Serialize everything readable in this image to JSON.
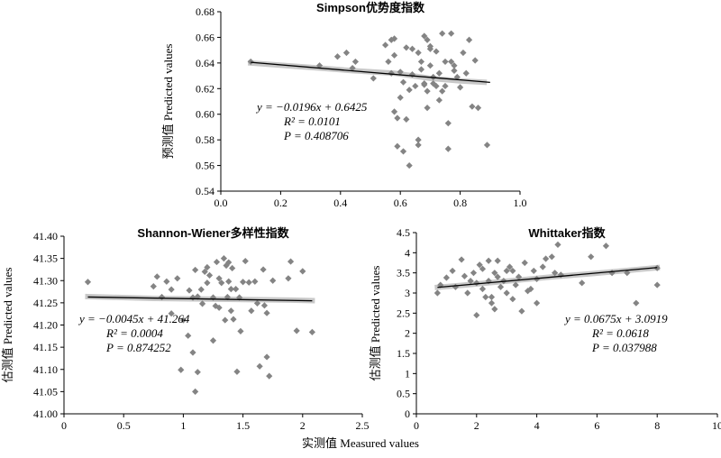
{
  "footer": {
    "xlabel": "实测值 Measured values"
  },
  "colors": {
    "point": "#848484",
    "fit_line": "#000000",
    "band": "#c8c8c8",
    "axis": "#000000"
  },
  "chart_data": [
    {
      "type": "scatter",
      "title": "Simpson优势度指数",
      "xlabel": "",
      "ylabel": "预测值 Predicted values",
      "xlim": [
        0,
        1.0
      ],
      "ylim": [
        0.54,
        0.68
      ],
      "xticks": [
        0,
        0.2,
        0.4,
        0.6,
        0.8,
        1.0
      ],
      "xtick_labels": [
        "0.0",
        "0.2",
        "0.4",
        "0.6",
        "0.8",
        "1.0"
      ],
      "yticks": [
        0.54,
        0.56,
        0.58,
        0.6,
        0.62,
        0.64,
        0.66,
        0.68
      ],
      "ytick_labels": [
        "0.54",
        "0.56",
        "0.58",
        "0.60",
        "0.62",
        "0.64",
        "0.66",
        "0.68"
      ],
      "annotation": {
        "eq": "y = −0.0196x + 0.6425",
        "r2": "R² = 0.0101",
        "p": "P = 0.408706"
      },
      "fit": {
        "slope": -0.0196,
        "intercept": 0.6425,
        "x": [
          0.1,
          0.9
        ]
      },
      "band": [
        [
          0.1,
          0.64
        ],
        [
          0.33,
          0.636
        ],
        [
          0.44,
          0.634
        ],
        [
          0.58,
          0.632
        ],
        [
          0.7,
          0.628
        ],
        [
          0.8,
          0.626
        ],
        [
          0.88,
          0.625
        ]
      ],
      "series": [
        {
          "values": [
            [
              0.1,
              0.641
            ],
            [
              0.33,
              0.638
            ],
            [
              0.39,
              0.645
            ],
            [
              0.42,
              0.648
            ],
            [
              0.44,
              0.636
            ],
            [
              0.45,
              0.641
            ],
            [
              0.51,
              0.628
            ],
            [
              0.55,
              0.654
            ],
            [
              0.56,
              0.641
            ],
            [
              0.57,
              0.658
            ],
            [
              0.57,
              0.632
            ],
            [
              0.58,
              0.646
            ],
            [
              0.58,
              0.659
            ],
            [
              0.58,
              0.602
            ],
            [
              0.59,
              0.597
            ],
            [
              0.59,
              0.575
            ],
            [
              0.6,
              0.633
            ],
            [
              0.6,
              0.613
            ],
            [
              0.61,
              0.571
            ],
            [
              0.61,
              0.625
            ],
            [
              0.62,
              0.652
            ],
            [
              0.62,
              0.596
            ],
            [
              0.63,
              0.619
            ],
            [
              0.63,
              0.56
            ],
            [
              0.64,
              0.651
            ],
            [
              0.64,
              0.631
            ],
            [
              0.65,
              0.622
            ],
            [
              0.66,
              0.58
            ],
            [
              0.66,
              0.648
            ],
            [
              0.66,
              0.576
            ],
            [
              0.67,
              0.641
            ],
            [
              0.67,
              0.635
            ],
            [
              0.68,
              0.624
            ],
            [
              0.68,
              0.661
            ],
            [
              0.68,
              0.623
            ],
            [
              0.69,
              0.658
            ],
            [
              0.69,
              0.618
            ],
            [
              0.69,
              0.605
            ],
            [
              0.7,
              0.651
            ],
            [
              0.7,
              0.638
            ],
            [
              0.7,
              0.653
            ],
            [
              0.71,
              0.629
            ],
            [
              0.71,
              0.624
            ],
            [
              0.72,
              0.649
            ],
            [
              0.72,
              0.622
            ],
            [
              0.73,
              0.611
            ],
            [
              0.73,
              0.632
            ],
            [
              0.74,
              0.663
            ],
            [
              0.74,
              0.618
            ],
            [
              0.75,
              0.641
            ],
            [
              0.75,
              0.622
            ],
            [
              0.76,
              0.593
            ],
            [
              0.76,
              0.573
            ],
            [
              0.77,
              0.641
            ],
            [
              0.77,
              0.663
            ],
            [
              0.78,
              0.634
            ],
            [
              0.78,
              0.638
            ],
            [
              0.79,
              0.629
            ],
            [
              0.8,
              0.621
            ],
            [
              0.81,
              0.648
            ],
            [
              0.82,
              0.632
            ],
            [
              0.83,
              0.658
            ],
            [
              0.84,
              0.606
            ],
            [
              0.85,
              0.642
            ],
            [
              0.86,
              0.605
            ],
            [
              0.89,
              0.576
            ]
          ]
        }
      ]
    },
    {
      "type": "scatter",
      "title": "Shannon-Wiener多样性指数",
      "xlabel": "",
      "ylabel": "估测值 Predicted values",
      "xlim": [
        0,
        2.5
      ],
      "ylim": [
        41.0,
        41.4
      ],
      "xticks": [
        0,
        0.5,
        1.0,
        1.5,
        2.0,
        2.5
      ],
      "xtick_labels": [
        "0",
        "0.5",
        "1",
        "1.5",
        "2",
        "2.5"
      ],
      "yticks": [
        41.0,
        41.05,
        41.1,
        41.15,
        41.2,
        41.25,
        41.3,
        41.35,
        41.4
      ],
      "ytick_labels": [
        "41.00",
        "41.05",
        "41.10",
        "41.15",
        "41.20",
        "41.25",
        "41.30",
        "41.35",
        "41.40"
      ],
      "annotation": {
        "eq": "y = −0.0045x + 41.264",
        "r2": "R² = 0.0004",
        "p": "P = 0.874252"
      },
      "fit": {
        "slope": -0.0045,
        "intercept": 41.264,
        "x": [
          0.2,
          2.08
        ]
      },
      "band": [
        [
          0.2,
          41.264
        ],
        [
          0.75,
          41.26
        ],
        [
          1.0,
          41.259
        ],
        [
          1.3,
          41.258
        ],
        [
          1.6,
          41.257
        ],
        [
          1.9,
          41.256
        ],
        [
          2.08,
          41.255
        ]
      ],
      "series": [
        {
          "values": [
            [
              0.2,
              41.297
            ],
            [
              0.75,
              41.287
            ],
            [
              0.78,
              41.309
            ],
            [
              0.82,
              41.263
            ],
            [
              0.86,
              41.298
            ],
            [
              0.9,
              41.28
            ],
            [
              0.9,
              41.226
            ],
            [
              0.95,
              41.305
            ],
            [
              0.98,
              41.099
            ],
            [
              1.0,
              41.211
            ],
            [
              1.04,
              41.176
            ],
            [
              1.05,
              41.278
            ],
            [
              1.08,
              41.262
            ],
            [
              1.08,
              41.138
            ],
            [
              1.1,
              41.324
            ],
            [
              1.1,
              41.05
            ],
            [
              1.12,
              41.094
            ],
            [
              1.12,
              41.264
            ],
            [
              1.15,
              41.28
            ],
            [
              1.16,
              41.248
            ],
            [
              1.18,
              41.32
            ],
            [
              1.2,
              41.33
            ],
            [
              1.2,
              41.295
            ],
            [
              1.22,
              41.312
            ],
            [
              1.25,
              41.262
            ],
            [
              1.25,
              41.165
            ],
            [
              1.27,
              41.243
            ],
            [
              1.28,
              41.342
            ],
            [
              1.3,
              41.305
            ],
            [
              1.3,
              41.239
            ],
            [
              1.32,
              41.295
            ],
            [
              1.34,
              41.35
            ],
            [
              1.35,
              41.211
            ],
            [
              1.36,
              41.334
            ],
            [
              1.37,
              41.263
            ],
            [
              1.38,
              41.341
            ],
            [
              1.38,
              41.298
            ],
            [
              1.4,
              41.281
            ],
            [
              1.4,
              41.232
            ],
            [
              1.41,
              41.328
            ],
            [
              1.42,
              41.213
            ],
            [
              1.44,
              41.281
            ],
            [
              1.45,
              41.095
            ],
            [
              1.47,
              41.262
            ],
            [
              1.48,
              41.186
            ],
            [
              1.5,
              41.297
            ],
            [
              1.52,
              41.344
            ],
            [
              1.55,
              41.296
            ],
            [
              1.57,
              41.232
            ],
            [
              1.6,
              41.298
            ],
            [
              1.62,
              41.249
            ],
            [
              1.64,
              41.107
            ],
            [
              1.67,
              41.325
            ],
            [
              1.68,
              41.244
            ],
            [
              1.7,
              41.227
            ],
            [
              1.7,
              41.128
            ],
            [
              1.72,
              41.085
            ],
            [
              1.75,
              41.3
            ],
            [
              1.88,
              41.305
            ],
            [
              1.9,
              41.343
            ],
            [
              1.95,
              41.187
            ],
            [
              2.0,
              41.321
            ],
            [
              2.08,
              41.184
            ]
          ]
        }
      ]
    },
    {
      "type": "scatter",
      "title": "Whittaker指数",
      "xlabel": "",
      "ylabel": "估测值 Predicted values",
      "xlim": [
        0,
        10
      ],
      "ylim": [
        0,
        4.5
      ],
      "xticks": [
        0,
        2,
        4,
        6,
        8,
        10
      ],
      "xtick_labels": [
        "0",
        "2",
        "4",
        "6",
        "8",
        "10"
      ],
      "yticks": [
        0,
        0.5,
        1.0,
        1.5,
        2.0,
        2.5,
        3.0,
        3.5,
        4.0,
        4.5
      ],
      "ytick_labels": [
        "0",
        "0.5",
        "1",
        "1.5",
        "2",
        "2.5",
        "3",
        "3.5",
        "4",
        "4.5"
      ],
      "annotation": {
        "eq": "y = 0.0675x + 3.0919",
        "r2": "R² = 0.0618",
        "p": "P = 0.037988"
      },
      "fit": {
        "slope": 0.0675,
        "intercept": 3.0919,
        "x": [
          0.7,
          8.0
        ]
      },
      "band": [
        [
          0.7,
          3.14
        ],
        [
          1.5,
          3.19
        ],
        [
          2.5,
          3.26
        ],
        [
          3.5,
          3.33
        ],
        [
          4.5,
          3.4
        ],
        [
          5.8,
          3.48
        ],
        [
          7.0,
          3.56
        ],
        [
          8.0,
          3.63
        ]
      ],
      "series": [
        {
          "values": [
            [
              0.7,
              3.0
            ],
            [
              0.8,
              3.2
            ],
            [
              1.0,
              3.38
            ],
            [
              1.2,
              3.55
            ],
            [
              1.3,
              3.15
            ],
            [
              1.5,
              3.83
            ],
            [
              1.6,
              3.42
            ],
            [
              1.7,
              3.0
            ],
            [
              1.8,
              3.3
            ],
            [
              1.9,
              3.5
            ],
            [
              2.0,
              2.45
            ],
            [
              2.0,
              3.25
            ],
            [
              2.1,
              3.7
            ],
            [
              2.2,
              3.6
            ],
            [
              2.2,
              3.1
            ],
            [
              2.3,
              2.9
            ],
            [
              2.4,
              3.3
            ],
            [
              2.4,
              3.8
            ],
            [
              2.5,
              2.75
            ],
            [
              2.5,
              2.9
            ],
            [
              2.6,
              3.5
            ],
            [
              2.6,
              2.6
            ],
            [
              2.7,
              3.4
            ],
            [
              2.7,
              3.8
            ],
            [
              2.8,
              3.15
            ],
            [
              2.9,
              3.3
            ],
            [
              3.0,
              3.55
            ],
            [
              3.0,
              3.0
            ],
            [
              3.1,
              3.65
            ],
            [
              3.2,
              2.85
            ],
            [
              3.2,
              3.55
            ],
            [
              3.3,
              3.2
            ],
            [
              3.4,
              3.4
            ],
            [
              3.5,
              2.55
            ],
            [
              3.6,
              3.75
            ],
            [
              3.7,
              3.05
            ],
            [
              3.8,
              3.1
            ],
            [
              3.9,
              3.55
            ],
            [
              4.0,
              2.75
            ],
            [
              4.0,
              3.35
            ],
            [
              4.2,
              3.65
            ],
            [
              4.3,
              3.85
            ],
            [
              4.5,
              3.9
            ],
            [
              4.6,
              3.5
            ],
            [
              4.7,
              4.2
            ],
            [
              4.8,
              3.45
            ],
            [
              5.5,
              3.25
            ],
            [
              5.8,
              3.9
            ],
            [
              6.3,
              4.17
            ],
            [
              6.5,
              3.5
            ],
            [
              7.0,
              3.5
            ],
            [
              7.3,
              2.75
            ],
            [
              8.0,
              3.2
            ],
            [
              8.0,
              3.62
            ]
          ]
        }
      ]
    }
  ]
}
